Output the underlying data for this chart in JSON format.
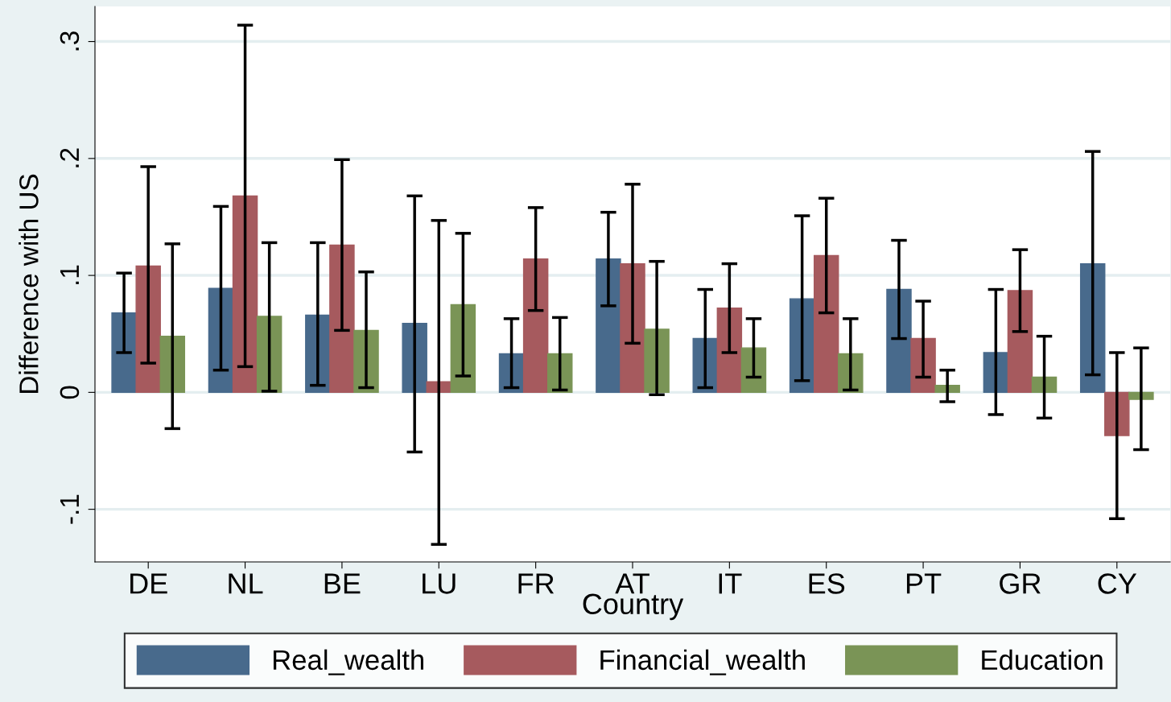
{
  "chart_data": {
    "type": "bar",
    "xlabel": "Country",
    "ylabel": "Difference with US",
    "categories": [
      "DE",
      "NL",
      "BE",
      "LU",
      "FR",
      "AT",
      "IT",
      "ES",
      "PT",
      "GR",
      "CY"
    ],
    "series": [
      {
        "name": "Real_wealth",
        "color": "#486a8c",
        "values": [
          0.068,
          0.089,
          0.066,
          0.059,
          0.033,
          0.114,
          0.046,
          0.08,
          0.088,
          0.034,
          0.11
        ],
        "errors": [
          [
            0.034,
            0.102
          ],
          [
            0.019,
            0.159
          ],
          [
            0.006,
            0.128
          ],
          [
            -0.051,
            0.168
          ],
          [
            0.004,
            0.063
          ],
          [
            0.074,
            0.154
          ],
          [
            0.004,
            0.088
          ],
          [
            0.01,
            0.151
          ],
          [
            0.046,
            0.13
          ],
          [
            -0.019,
            0.088
          ],
          [
            0.015,
            0.206
          ]
        ]
      },
      {
        "name": "Financial_wealth",
        "color": "#a65a5e",
        "values": [
          0.108,
          0.168,
          0.126,
          0.009,
          0.114,
          0.11,
          0.072,
          0.117,
          0.046,
          0.087,
          -0.037
        ],
        "errors": [
          [
            0.025,
            0.193
          ],
          [
            0.022,
            0.314
          ],
          [
            0.053,
            0.199
          ],
          [
            -0.13,
            0.147
          ],
          [
            0.07,
            0.158
          ],
          [
            0.042,
            0.178
          ],
          [
            0.034,
            0.11
          ],
          [
            0.068,
            0.166
          ],
          [
            0.013,
            0.078
          ],
          [
            0.052,
            0.122
          ],
          [
            -0.108,
            0.034
          ]
        ]
      },
      {
        "name": "Education",
        "color": "#7a9456",
        "values": [
          0.048,
          0.065,
          0.053,
          0.075,
          0.033,
          0.054,
          0.038,
          0.033,
          0.006,
          0.013,
          -0.006
        ],
        "errors": [
          [
            -0.031,
            0.127
          ],
          [
            0.001,
            0.128
          ],
          [
            0.004,
            0.103
          ],
          [
            0.014,
            0.136
          ],
          [
            0.002,
            0.064
          ],
          [
            -0.002,
            0.112
          ],
          [
            0.013,
            0.063
          ],
          [
            0.002,
            0.063
          ],
          [
            -0.008,
            0.019
          ],
          [
            -0.022,
            0.048
          ],
          [
            -0.049,
            0.038
          ]
        ]
      }
    ],
    "ylim": [
      -0.145,
      0.33
    ],
    "yticks": [
      {
        "value": -0.1,
        "label": "-.1"
      },
      {
        "value": 0,
        "label": "0"
      },
      {
        "value": 0.1,
        "label": ".1"
      },
      {
        "value": 0.2,
        "label": ".2"
      },
      {
        "value": 0.3,
        "label": ".3"
      }
    ],
    "grid": "y",
    "legend": "bottom"
  }
}
